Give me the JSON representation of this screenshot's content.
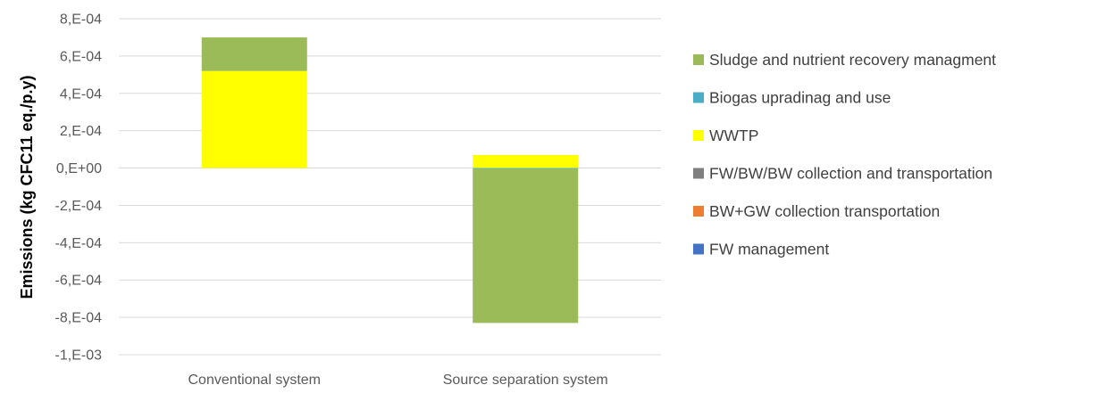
{
  "chart_data": {
    "type": "bar",
    "stacked": true,
    "title": "",
    "xlabel": "",
    "ylabel": "Emissions (kg CFC11 eq./p.y)",
    "ylim": [
      -0.001,
      0.0008
    ],
    "ytick_values": [
      0.0008,
      0.0006,
      0.0004,
      0.0002,
      0,
      -0.0002,
      -0.0004,
      -0.0006,
      -0.0008,
      -0.001
    ],
    "ytick_labels": [
      "8,E-04",
      "6,E-04",
      "4,E-04",
      "2,E-04",
      "0,E+00",
      "-2,E-04",
      "-4,E-04",
      "-6,E-04",
      "-8,E-04",
      "-1,E-03"
    ],
    "grid": true,
    "legend_position": "right",
    "categories": [
      "Conventional system",
      "Source separation system"
    ],
    "series": [
      {
        "name": "FW management",
        "color": "#4472C4",
        "values": [
          0,
          0
        ]
      },
      {
        "name": "BW+GW collection transportation",
        "color": "#ED7D31",
        "values": [
          0,
          0
        ]
      },
      {
        "name": "FW/BW/BW collection and transportation",
        "color": "#7F7F7F",
        "values": [
          0,
          0
        ]
      },
      {
        "name": "WWTP",
        "color": "#FFFF00",
        "values": [
          0.00052,
          7e-05
        ]
      },
      {
        "name": "Biogas upradinag and use",
        "color": "#4BACC6",
        "values": [
          0,
          -5e-06
        ]
      },
      {
        "name": "Sludge and nutrient recovery managment",
        "color": "#9BBB59",
        "values": [
          0.00018,
          -0.000825
        ]
      }
    ]
  }
}
